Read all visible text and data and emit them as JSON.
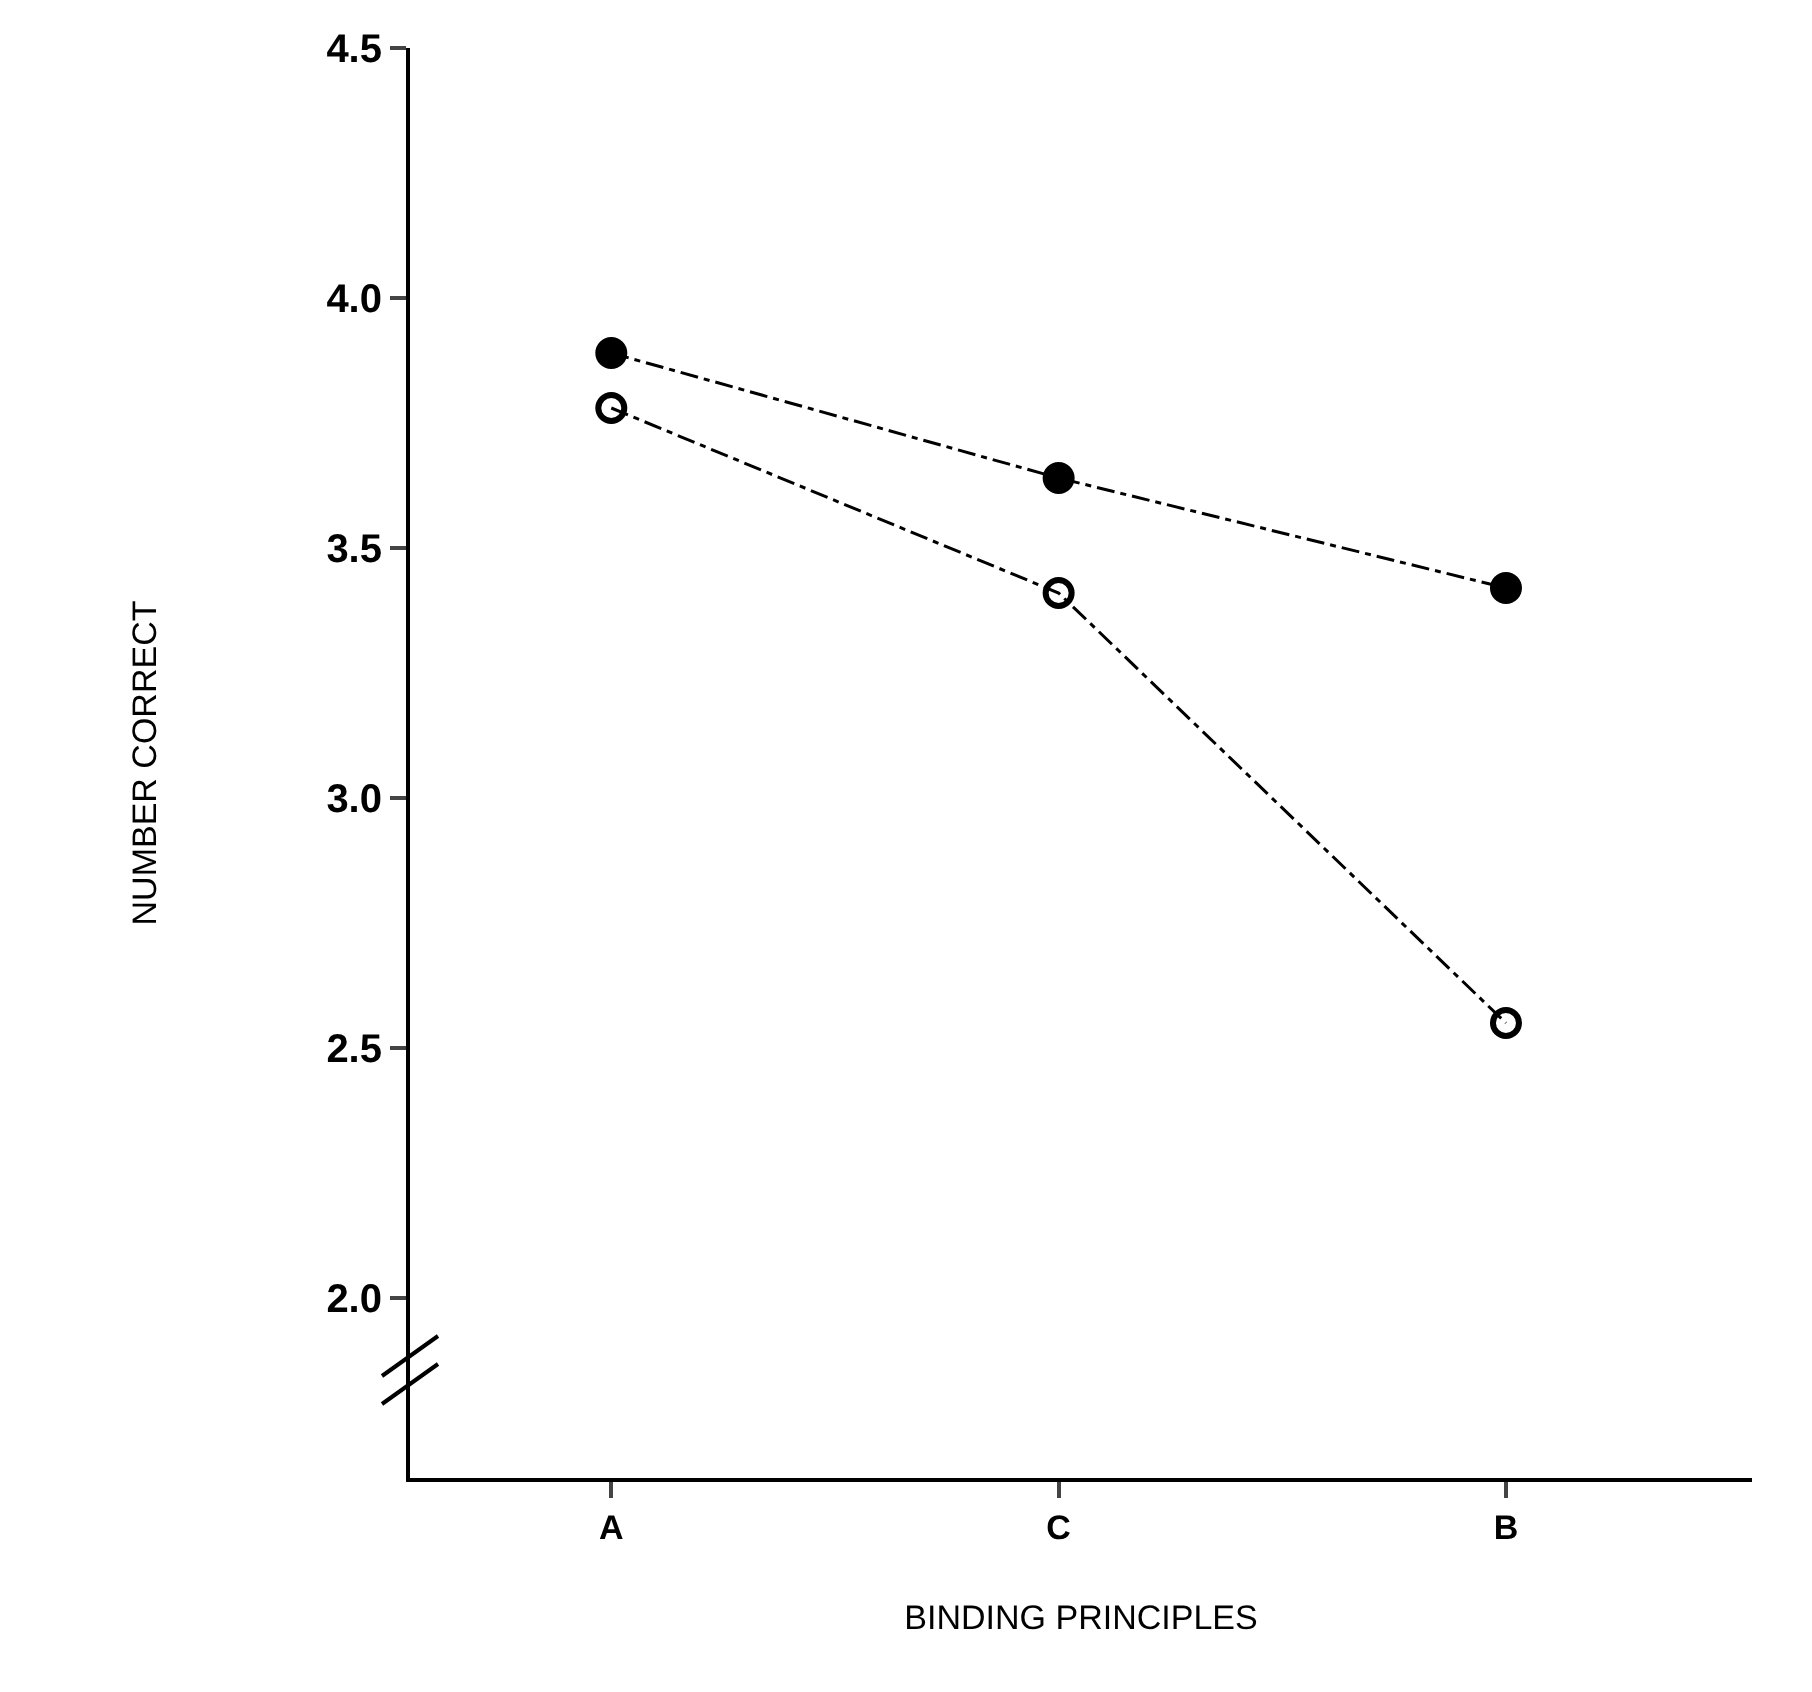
{
  "chart_data": {
    "type": "line",
    "xlabel": "BINDING PRINCIPLES",
    "ylabel": "NUMBER CORRECT",
    "categories": [
      "A",
      "C",
      "B"
    ],
    "series": [
      {
        "color": "#000000",
        "marker": "circle",
        "values": [
          3.89,
          3.64,
          3.42
        ]
      },
      {
        "color": "#000000",
        "marker": "circle-open",
        "values": [
          3.78,
          3.41,
          2.55
        ]
      }
    ],
    "ylim": [
      1.64,
      4.5
    ],
    "yticks": [
      {
        "value": 2.0,
        "label": "2.0"
      },
      2.5,
      {
        "value": 3.0,
        "label": "3.0"
      },
      3.5,
      {
        "value": 4.0,
        "label": "4.0"
      },
      4.5
    ],
    "grid": false,
    "line_style": "dashed"
  }
}
